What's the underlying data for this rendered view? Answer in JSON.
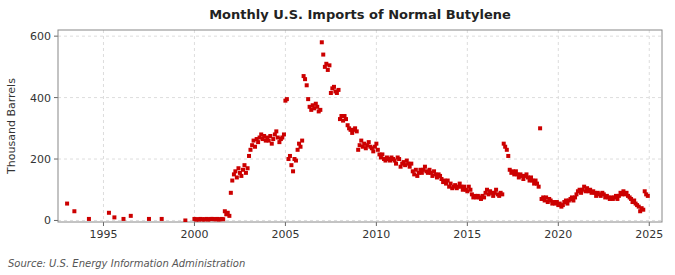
{
  "chart_data": {
    "type": "scatter",
    "title": "Monthly U.S. Imports of Normal Butylene",
    "ylabel": "Thousand Barrels",
    "annotation": "Source: U.S. Energy Information Administration",
    "color": "#cc0000",
    "marker": "square",
    "grid": true,
    "xlim": [
      1992.5,
      2025.7
    ],
    "ylim": [
      -5,
      620
    ],
    "xticks": [
      1995,
      2000,
      2005,
      2010,
      2015,
      2020,
      2025
    ],
    "yticks": [
      0,
      200,
      400,
      600
    ],
    "x": [
      1993.0,
      1993.4,
      1994.2,
      1995.3,
      1995.6,
      1996.1,
      1996.5,
      1997.5,
      1998.2,
      1999.5,
      2000.0,
      2000.08,
      2000.17,
      2000.25,
      2000.33,
      2000.42,
      2000.5,
      2000.58,
      2000.67,
      2000.75,
      2000.83,
      2000.92,
      2001.0,
      2001.08,
      2001.17,
      2001.25,
      2001.33,
      2001.42,
      2001.5,
      2001.58,
      2001.67,
      2001.75,
      2001.83,
      2001.92,
      2002.0,
      2002.08,
      2002.17,
      2002.25,
      2002.33,
      2002.42,
      2002.5,
      2002.58,
      2002.67,
      2002.75,
      2002.83,
      2002.92,
      2003.0,
      2003.08,
      2003.17,
      2003.25,
      2003.33,
      2003.42,
      2003.5,
      2003.58,
      2003.67,
      2003.75,
      2003.83,
      2003.92,
      2004.0,
      2004.08,
      2004.17,
      2004.25,
      2004.33,
      2004.42,
      2004.5,
      2004.58,
      2004.67,
      2004.75,
      2004.83,
      2004.92,
      2005.0,
      2005.08,
      2005.17,
      2005.25,
      2005.33,
      2005.42,
      2005.5,
      2005.58,
      2005.67,
      2005.75,
      2005.83,
      2005.92,
      2006.0,
      2006.08,
      2006.17,
      2006.25,
      2006.33,
      2006.42,
      2006.5,
      2006.58,
      2006.67,
      2006.75,
      2006.83,
      2006.92,
      2007.0,
      2007.08,
      2007.17,
      2007.25,
      2007.33,
      2007.42,
      2007.5,
      2007.58,
      2007.67,
      2007.75,
      2007.83,
      2007.92,
      2008.0,
      2008.08,
      2008.17,
      2008.25,
      2008.33,
      2008.42,
      2008.5,
      2008.58,
      2008.67,
      2008.75,
      2008.83,
      2008.92,
      2009.0,
      2009.08,
      2009.17,
      2009.25,
      2009.33,
      2009.42,
      2009.5,
      2009.58,
      2009.67,
      2009.75,
      2009.83,
      2009.92,
      2010.0,
      2010.08,
      2010.17,
      2010.25,
      2010.33,
      2010.42,
      2010.5,
      2010.58,
      2010.67,
      2010.75,
      2010.83,
      2010.92,
      2011.0,
      2011.08,
      2011.17,
      2011.25,
      2011.33,
      2011.42,
      2011.5,
      2011.58,
      2011.67,
      2011.75,
      2011.83,
      2011.92,
      2012.0,
      2012.08,
      2012.17,
      2012.25,
      2012.33,
      2012.42,
      2012.5,
      2012.58,
      2012.67,
      2012.75,
      2012.83,
      2012.92,
      2013.0,
      2013.08,
      2013.17,
      2013.25,
      2013.33,
      2013.42,
      2013.5,
      2013.58,
      2013.67,
      2013.75,
      2013.83,
      2013.92,
      2014.0,
      2014.08,
      2014.17,
      2014.25,
      2014.33,
      2014.42,
      2014.5,
      2014.58,
      2014.67,
      2014.75,
      2014.83,
      2014.92,
      2015.0,
      2015.08,
      2015.17,
      2015.25,
      2015.33,
      2015.42,
      2015.5,
      2015.58,
      2015.67,
      2015.75,
      2015.83,
      2015.92,
      2016.0,
      2016.08,
      2016.17,
      2016.25,
      2016.33,
      2016.42,
      2016.5,
      2016.58,
      2016.67,
      2016.75,
      2016.83,
      2016.92,
      2017.0,
      2017.08,
      2017.17,
      2017.25,
      2017.33,
      2017.42,
      2017.5,
      2017.58,
      2017.67,
      2017.75,
      2017.83,
      2017.92,
      2018.0,
      2018.08,
      2018.17,
      2018.25,
      2018.33,
      2018.42,
      2018.5,
      2018.58,
      2018.67,
      2018.75,
      2018.83,
      2018.92,
      2019.0,
      2019.08,
      2019.17,
      2019.25,
      2019.33,
      2019.42,
      2019.5,
      2019.58,
      2019.67,
      2019.75,
      2019.83,
      2019.92,
      2020.0,
      2020.08,
      2020.17,
      2020.25,
      2020.33,
      2020.42,
      2020.5,
      2020.58,
      2020.67,
      2020.75,
      2020.83,
      2020.92,
      2021.0,
      2021.08,
      2021.17,
      2021.25,
      2021.33,
      2021.42,
      2021.5,
      2021.58,
      2021.67,
      2021.75,
      2021.83,
      2021.92,
      2022.0,
      2022.08,
      2022.17,
      2022.25,
      2022.33,
      2022.42,
      2022.5,
      2022.58,
      2022.67,
      2022.75,
      2022.83,
      2022.92,
      2023.0,
      2023.08,
      2023.17,
      2023.25,
      2023.33,
      2023.42,
      2023.5,
      2023.58,
      2023.67,
      2023.75,
      2023.83,
      2023.92,
      2024.0,
      2024.08,
      2024.17,
      2024.25,
      2024.33,
      2024.42,
      2024.5,
      2024.58,
      2024.67,
      2024.75,
      2024.83,
      2024.92
    ],
    "values": [
      55,
      30,
      5,
      25,
      10,
      5,
      15,
      5,
      5,
      0,
      5,
      3,
      4,
      3,
      5,
      4,
      3,
      4,
      5,
      3,
      4,
      5,
      5,
      4,
      4,
      5,
      3,
      4,
      5,
      4,
      30,
      20,
      25,
      15,
      90,
      130,
      150,
      160,
      140,
      170,
      155,
      145,
      165,
      180,
      155,
      170,
      210,
      230,
      245,
      260,
      240,
      265,
      255,
      270,
      280,
      265,
      275,
      260,
      270,
      260,
      275,
      250,
      265,
      280,
      290,
      270,
      255,
      265,
      270,
      280,
      390,
      395,
      200,
      210,
      180,
      160,
      200,
      195,
      230,
      250,
      240,
      260,
      470,
      460,
      440,
      395,
      370,
      360,
      375,
      365,
      380,
      370,
      355,
      360,
      580,
      540,
      500,
      510,
      490,
      505,
      415,
      430,
      435,
      420,
      415,
      425,
      330,
      340,
      325,
      340,
      330,
      310,
      300,
      295,
      285,
      295,
      300,
      290,
      230,
      245,
      260,
      240,
      250,
      235,
      245,
      255,
      240,
      235,
      225,
      240,
      250,
      230,
      215,
      205,
      215,
      200,
      195,
      205,
      200,
      195,
      205,
      200,
      195,
      185,
      205,
      200,
      175,
      185,
      190,
      180,
      195,
      185,
      175,
      185,
      160,
      150,
      165,
      145,
      155,
      165,
      155,
      165,
      175,
      160,
      155,
      165,
      155,
      145,
      160,
      150,
      140,
      150,
      145,
      135,
      125,
      130,
      120,
      130,
      110,
      120,
      105,
      110,
      115,
      105,
      110,
      120,
      110,
      100,
      110,
      100,
      95,
      110,
      100,
      85,
      75,
      80,
      75,
      80,
      75,
      70,
      80,
      75,
      90,
      100,
      85,
      95,
      90,
      80,
      90,
      100,
      85,
      80,
      90,
      85,
      250,
      240,
      230,
      210,
      165,
      155,
      160,
      150,
      160,
      150,
      140,
      150,
      145,
      135,
      145,
      150,
      140,
      130,
      140,
      130,
      120,
      130,
      120,
      110,
      300,
      70,
      75,
      65,
      75,
      60,
      70,
      65,
      55,
      60,
      55,
      60,
      50,
      55,
      45,
      50,
      60,
      65,
      55,
      65,
      70,
      75,
      65,
      75,
      85,
      95,
      100,
      90,
      100,
      110,
      95,
      105,
      95,
      100,
      90,
      95,
      90,
      80,
      90,
      85,
      80,
      90,
      85,
      75,
      80,
      75,
      70,
      75,
      70,
      75,
      80,
      70,
      80,
      90,
      85,
      95,
      85,
      90,
      80,
      75,
      70,
      60,
      65,
      55,
      50,
      45,
      30,
      40,
      35,
      95,
      85,
      80
    ]
  }
}
